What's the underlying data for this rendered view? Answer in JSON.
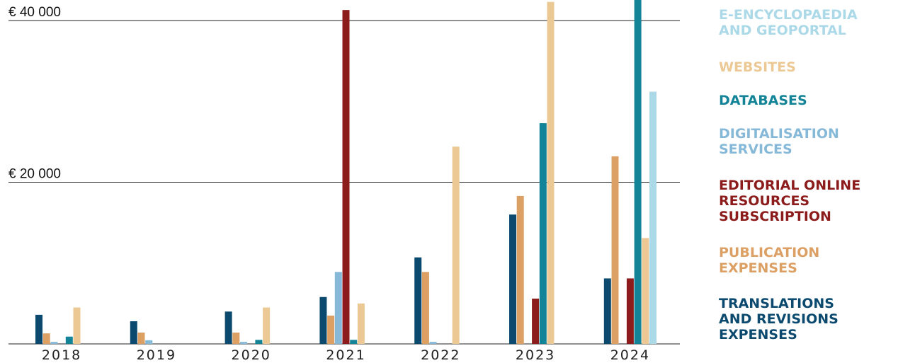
{
  "chart_data": {
    "type": "bar",
    "categories": [
      "2018",
      "2019",
      "2020",
      "2021",
      "2022",
      "2023",
      "2024"
    ],
    "y_gridlines": [
      {
        "value": 40000,
        "label": "€ 40 000"
      },
      {
        "value": 20000,
        "label": "€ 20 000"
      }
    ],
    "ylim": [
      0,
      41500
    ],
    "series": [
      {
        "name": "TRANSLATIONS AND REVISIONS EXPENSES",
        "color": "#0b4a6e",
        "values": [
          3600,
          2800,
          4000,
          5800,
          10700,
          16000,
          8100
        ]
      },
      {
        "name": "PUBLICATION EXPENSES",
        "color": "#dca064",
        "values": [
          1300,
          1400,
          1400,
          3500,
          8900,
          18300,
          23200
        ]
      },
      {
        "name": "DIGITALISATION SERVICES",
        "color": "#86b8d8",
        "values": [
          250,
          450,
          250,
          8900,
          250,
          0,
          0
        ]
      },
      {
        "name": "EDITORIAL ONLINE RESOURCES SUBSCRIPTION",
        "color": "#8c1c1c",
        "values": [
          0,
          0,
          0,
          41300,
          0,
          5600,
          8100
        ]
      },
      {
        "name": "DATABASES",
        "color": "#138497",
        "values": [
          900,
          0,
          500,
          500,
          0,
          27300,
          43000
        ]
      },
      {
        "name": "WEBSITES",
        "color": "#ecc994",
        "values": [
          4500,
          0,
          4500,
          5000,
          24400,
          42300,
          13100
        ]
      },
      {
        "name": "E-ENCYCLOPAEDIA AND GEOPORTAL",
        "color": "#abd9e8",
        "values": [
          0,
          0,
          0,
          0,
          0,
          0,
          31200
        ]
      }
    ]
  },
  "legend": [
    {
      "label": "E-ENCYCLOPAEDIA\nAND GEOPORTAL",
      "color": "#abd9e8"
    },
    {
      "label": "WEBSITES",
      "color": "#ecc994"
    },
    {
      "label": "DATABASES",
      "color": "#138497"
    },
    {
      "label": "DIGITALISATION\nSERVICES",
      "color": "#86b8d8"
    },
    {
      "label": "EDITORIAL ONLINE\nRESOURCES\nSUBSCRIPTION",
      "color": "#8c1c1c"
    },
    {
      "label": "PUBLICATION\nEXPENSES",
      "color": "#dca064"
    },
    {
      "label": "TRANSLATIONS\nAND REVISIONS\nEXPENSES",
      "color": "#0b4a6e"
    }
  ]
}
